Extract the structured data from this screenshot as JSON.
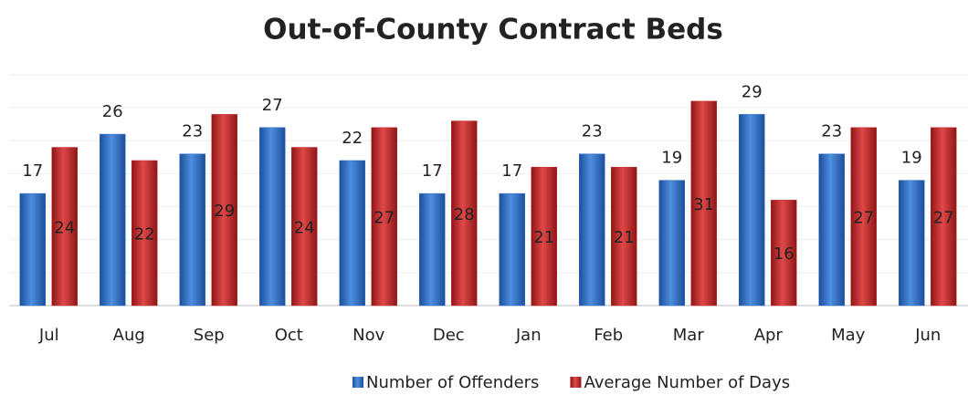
{
  "chart_data": {
    "type": "bar",
    "title": "Out-of-County Contract Beds",
    "categories": [
      "Jul",
      "Aug",
      "Sep",
      "Oct",
      "Nov",
      "Dec",
      "Jan",
      "Feb",
      "Mar",
      "Apr",
      "May",
      "Jun"
    ],
    "series": [
      {
        "name": "Number of Offenders",
        "color": "#2f6fc6",
        "values": [
          17,
          26,
          23,
          27,
          22,
          17,
          17,
          23,
          19,
          29,
          23,
          19
        ]
      },
      {
        "name": "Average Number of Days",
        "color": "#c62a2a",
        "values": [
          24,
          22,
          29,
          24,
          27,
          28,
          21,
          21,
          31,
          16,
          27,
          27
        ]
      }
    ],
    "ylim": [
      0,
      35
    ],
    "yticks": [
      0,
      5,
      10,
      15,
      20,
      25,
      30,
      35
    ],
    "grid": true
  }
}
